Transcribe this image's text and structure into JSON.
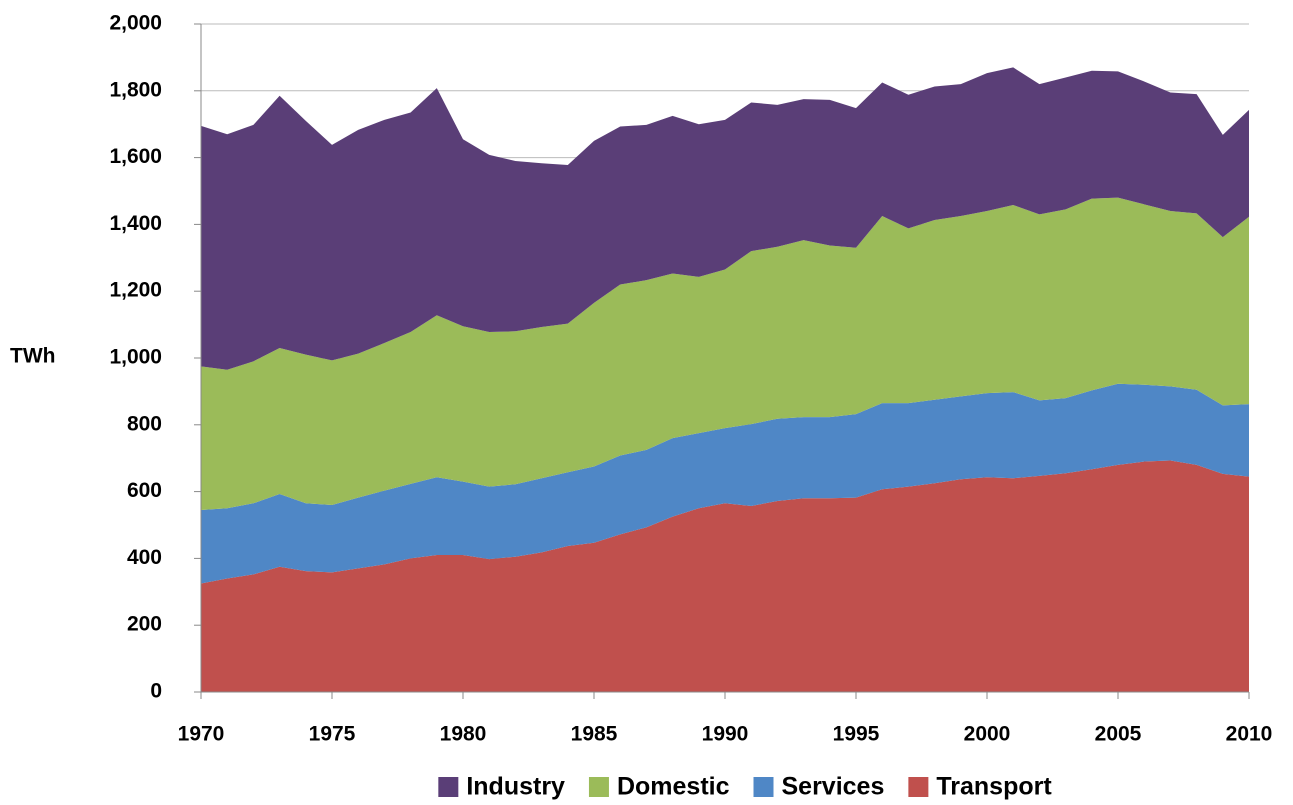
{
  "chart_data": {
    "type": "stacked-area",
    "ylabel": "TWh",
    "x": [
      1970,
      1971,
      1972,
      1973,
      1974,
      1975,
      1976,
      1977,
      1978,
      1979,
      1980,
      1981,
      1982,
      1983,
      1984,
      1985,
      1986,
      1987,
      1988,
      1989,
      1990,
      1991,
      1992,
      1993,
      1994,
      1995,
      1996,
      1997,
      1998,
      1999,
      2000,
      2001,
      2002,
      2003,
      2004,
      2005,
      2006,
      2007,
      2008,
      2009,
      2010
    ],
    "series": [
      {
        "name": "Industry",
        "color": "#5a3e77",
        "values": [
          720,
          705,
          708,
          755,
          700,
          645,
          670,
          668,
          657,
          680,
          560,
          530,
          510,
          490,
          475,
          485,
          473,
          465,
          472,
          457,
          448,
          445,
          425,
          422,
          436,
          418,
          400,
          400,
          400,
          395,
          413,
          412,
          390,
          395,
          383,
          378,
          368,
          355,
          357,
          306,
          320
        ]
      },
      {
        "name": "Domestic",
        "color": "#9bbb59",
        "values": [
          430,
          415,
          425,
          437,
          445,
          433,
          431,
          442,
          455,
          485,
          465,
          463,
          458,
          453,
          445,
          490,
          512,
          508,
          493,
          468,
          475,
          518,
          515,
          530,
          514,
          498,
          560,
          523,
          538,
          540,
          545,
          560,
          557,
          565,
          574,
          557,
          540,
          525,
          528,
          504,
          561
        ]
      },
      {
        "name": "Services",
        "color": "#4f87c6",
        "values": [
          220,
          210,
          213,
          218,
          203,
          202,
          212,
          221,
          223,
          233,
          220,
          217,
          217,
          222,
          221,
          228,
          236,
          232,
          235,
          225,
          225,
          245,
          246,
          243,
          243,
          250,
          258,
          250,
          250,
          248,
          252,
          258,
          226,
          225,
          236,
          243,
          230,
          222,
          225,
          205,
          217
        ]
      },
      {
        "name": "Transport",
        "color": "#c0504d",
        "values": [
          325,
          340,
          352,
          375,
          362,
          358,
          370,
          382,
          400,
          410,
          410,
          398,
          405,
          418,
          437,
          447,
          472,
          493,
          525,
          550,
          565,
          557,
          572,
          580,
          580,
          582,
          607,
          615,
          625,
          637,
          643,
          640,
          647,
          655,
          667,
          680,
          690,
          693,
          680,
          653,
          645
        ]
      }
    ],
    "xlim": [
      1970,
      2010
    ],
    "xticks": [
      1970,
      1975,
      1980,
      1985,
      1990,
      1995,
      2000,
      2005,
      2010
    ],
    "ylim": [
      0,
      2000
    ],
    "yticks": [
      0,
      200,
      400,
      600,
      800,
      {
        "value": 1000,
        "label": "1,000"
      },
      {
        "value": 1200,
        "label": "1,200"
      },
      {
        "value": 1400,
        "label": "1,400"
      },
      {
        "value": 1600,
        "label": "1,600"
      },
      {
        "value": 1800,
        "label": "1,800"
      },
      {
        "value": 2000,
        "label": "2,000"
      }
    ],
    "grid": true,
    "legend": "bottom"
  }
}
